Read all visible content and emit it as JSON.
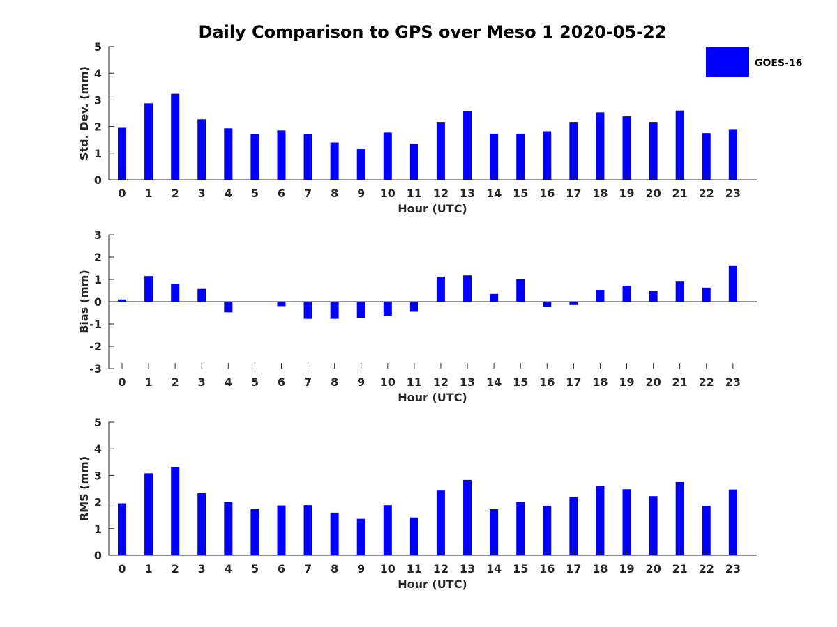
{
  "title": "Daily Comparison to GPS over Meso 1 2020-05-22",
  "colors": {
    "bar": "#0000ff",
    "axis": "#262626"
  },
  "legend": {
    "label": "GOES-16",
    "position": "top-right"
  },
  "chart_data": [
    {
      "type": "bar",
      "title": "Daily Comparison to GPS over Meso 1 2020-05-22",
      "xlabel": "Hour (UTC)",
      "ylabel": "Std. Dev. (mm)",
      "ylim": [
        0,
        5
      ],
      "yticks": [
        0,
        1,
        2,
        3,
        4,
        5
      ],
      "categories": [
        "0",
        "1",
        "2",
        "3",
        "4",
        "5",
        "6",
        "7",
        "8",
        "9",
        "10",
        "11",
        "12",
        "13",
        "14",
        "15",
        "16",
        "17",
        "18",
        "19",
        "20",
        "21",
        "22",
        "23"
      ],
      "series": [
        {
          "name": "GOES-16",
          "values": [
            1.95,
            2.87,
            3.23,
            2.27,
            1.93,
            1.72,
            1.85,
            1.72,
            1.4,
            1.15,
            1.77,
            1.35,
            2.17,
            2.58,
            1.73,
            1.73,
            1.82,
            2.17,
            2.53,
            2.38,
            2.17,
            2.6,
            1.75,
            1.9
          ]
        }
      ]
    },
    {
      "type": "bar",
      "xlabel": "Hour (UTC)",
      "ylabel": "Bias (mm)",
      "ylim": [
        -3,
        3
      ],
      "yticks": [
        -3,
        -2,
        -1,
        0,
        1,
        2,
        3
      ],
      "categories": [
        "0",
        "1",
        "2",
        "3",
        "4",
        "5",
        "6",
        "7",
        "8",
        "9",
        "10",
        "11",
        "12",
        "13",
        "14",
        "15",
        "16",
        "17",
        "18",
        "19",
        "20",
        "21",
        "22",
        "23"
      ],
      "series": [
        {
          "name": "GOES-16",
          "values": [
            0.1,
            1.15,
            0.8,
            0.57,
            -0.48,
            0.0,
            -0.2,
            -0.77,
            -0.77,
            -0.72,
            -0.65,
            -0.45,
            1.12,
            1.18,
            0.35,
            1.02,
            -0.22,
            -0.15,
            0.53,
            0.72,
            0.5,
            0.9,
            0.63,
            1.6
          ]
        }
      ]
    },
    {
      "type": "bar",
      "xlabel": "Hour (UTC)",
      "ylabel": "RMS (mm)",
      "ylim": [
        0,
        5
      ],
      "yticks": [
        0,
        1,
        2,
        3,
        4,
        5
      ],
      "categories": [
        "0",
        "1",
        "2",
        "3",
        "4",
        "5",
        "6",
        "7",
        "8",
        "9",
        "10",
        "11",
        "12",
        "13",
        "14",
        "15",
        "16",
        "17",
        "18",
        "19",
        "20",
        "21",
        "22",
        "23"
      ],
      "series": [
        {
          "name": "GOES-16",
          "values": [
            1.95,
            3.08,
            3.32,
            2.33,
            2.0,
            1.73,
            1.87,
            1.88,
            1.6,
            1.37,
            1.88,
            1.42,
            2.43,
            2.83,
            1.73,
            2.0,
            1.85,
            2.18,
            2.6,
            2.48,
            2.22,
            2.75,
            1.85,
            2.47
          ]
        }
      ]
    }
  ]
}
